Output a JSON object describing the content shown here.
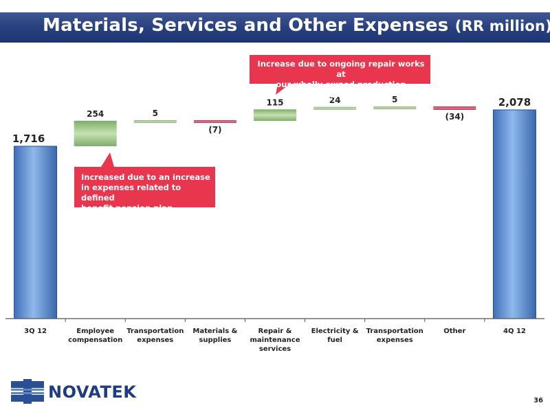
{
  "title": {
    "main": "Materials, Services and Other Expenses",
    "unit": "(RR million)"
  },
  "chart_data": {
    "type": "bar",
    "subtype": "waterfall",
    "categories": [
      [
        "3Q 12"
      ],
      [
        "Employee",
        "compensation"
      ],
      [
        "Transportation",
        "expenses"
      ],
      [
        "Materials &",
        "supplies"
      ],
      [
        "Repair &",
        "maintenance",
        "services"
      ],
      [
        "Electricity &",
        "fuel"
      ],
      [
        "Transportation",
        "expenses"
      ],
      [
        "Other"
      ],
      [
        "4Q 12"
      ]
    ],
    "values": [
      1716,
      254,
      5,
      -7,
      115,
      24,
      5,
      -34,
      2078
    ],
    "labels": [
      "1,716",
      "254",
      "5",
      "(7)",
      "115",
      "24",
      "5",
      "(34)",
      "2,078"
    ],
    "kinds": [
      "total",
      "delta",
      "delta",
      "delta",
      "delta",
      "delta",
      "delta",
      "delta",
      "total"
    ],
    "ylim": [
      0,
      2078
    ],
    "colors": {
      "total": "#5b8fd6",
      "increase": "#a6cc8f",
      "decrease": "#d6405a"
    }
  },
  "callouts": [
    {
      "id": "employee",
      "lines": [
        "Increased due to an increase",
        "in expenses related to defined",
        "benefit pension plan"
      ]
    },
    {
      "id": "repair",
      "lines": [
        "Increase due to ongoing repair works at",
        "our wholly owned production subsidiaries"
      ]
    }
  ],
  "logo": {
    "text": "NOVATEK"
  },
  "page_number": "36"
}
